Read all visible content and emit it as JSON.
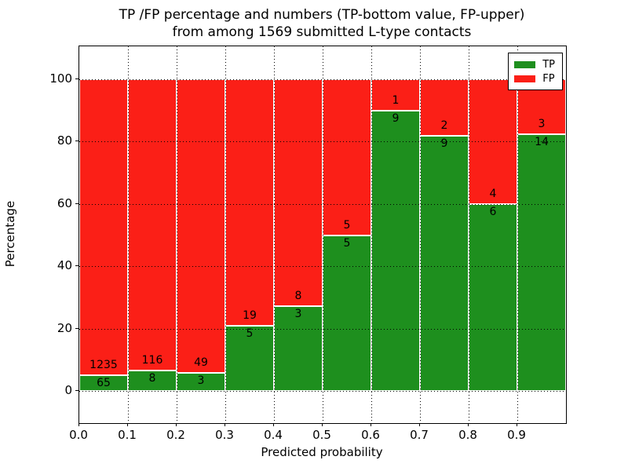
{
  "figure": {
    "title_line1": "TP /FP percentage and numbers (TP-bottom value, FP-upper)",
    "title_line2": "from among 1569 submitted L-type contacts",
    "xlabel": "Predicted probability",
    "ylabel": "Percentage"
  },
  "legend": {
    "entries": [
      {
        "label": "TP",
        "color": "#1e8f1e"
      },
      {
        "label": "FP",
        "color": "#fb1f17"
      }
    ],
    "position": "upper right"
  },
  "chart_data": {
    "type": "bar",
    "stacked": true,
    "normalized": "each bin stacked to 100%",
    "title": "TP /FP percentage and numbers (TP-bottom value, FP-upper) from among 1569 submitted L-type contacts",
    "xlabel": "Predicted probability",
    "ylabel": "Percentage",
    "total_contacts": 1569,
    "bin_start": [
      0.0,
      0.1,
      0.2,
      0.3,
      0.4,
      0.5,
      0.6,
      0.7,
      0.8,
      0.9
    ],
    "bin_width": 0.1,
    "x_tick_labels": [
      "0.0",
      "0.1",
      "0.2",
      "0.3",
      "0.4",
      "0.5",
      "0.6",
      "0.7",
      "0.8",
      "0.9"
    ],
    "y_ticks": [
      0,
      20,
      40,
      60,
      80,
      100
    ],
    "xlim": [
      0.0,
      1.0
    ],
    "ylim": [
      -10.3,
      110.7
    ],
    "grid": "dotted black, horizontal and vertical, drawn above bars",
    "bar_edge_color": "#ffffff",
    "series": [
      {
        "name": "TP",
        "color": "#1e8f1e",
        "counts": [
          65,
          8,
          3,
          5,
          3,
          5,
          9,
          9,
          6,
          14
        ]
      },
      {
        "name": "FP",
        "color": "#fb1f17",
        "counts": [
          1235,
          116,
          49,
          19,
          8,
          5,
          1,
          2,
          4,
          3
        ]
      }
    ],
    "tp_percent": [
      5.0,
      6.45,
      5.77,
      20.83,
      27.27,
      50.0,
      90.0,
      81.82,
      60.0,
      82.35
    ],
    "fp_percent": [
      95.0,
      93.55,
      94.23,
      79.17,
      72.73,
      50.0,
      10.0,
      18.18,
      40.0,
      17.65
    ]
  }
}
